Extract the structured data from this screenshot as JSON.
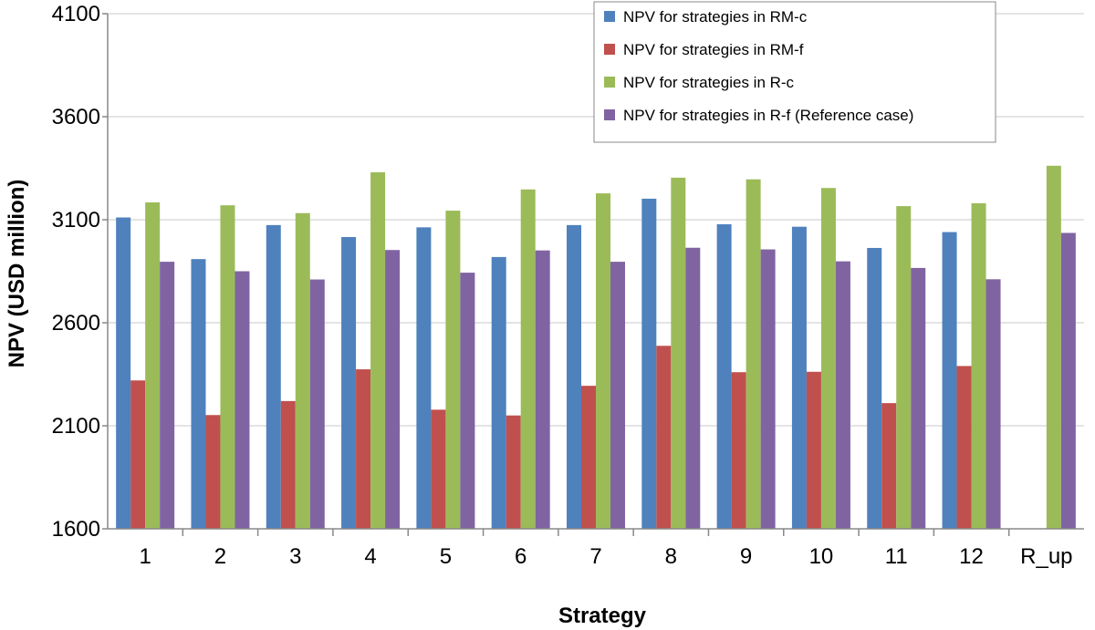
{
  "chart_data": {
    "type": "bar",
    "title": "",
    "xlabel": "Strategy",
    "ylabel": "NPV (USD million)",
    "ylim": [
      1600,
      4100
    ],
    "yticks": [
      1600,
      2100,
      2600,
      3100,
      3600,
      4100
    ],
    "grid": true,
    "legend_position": "top-right",
    "categories": [
      "1",
      "2",
      "3",
      "4",
      "5",
      "6",
      "7",
      "8",
      "9",
      "10",
      "11",
      "12",
      "R_up"
    ],
    "series": [
      {
        "name": "NPV for strategies in RM-c",
        "color": "#4f81bd",
        "values": [
          3111,
          2909,
          3074,
          3016,
          3063,
          2919,
          3074,
          3202,
          3078,
          3066,
          2963,
          3040,
          null
        ]
      },
      {
        "name": "NPV for strategies in RM-f",
        "color": "#c0504d",
        "values": [
          2320,
          2152,
          2220,
          2374,
          2178,
          2150,
          2294,
          2488,
          2360,
          2362,
          2210,
          2390,
          null
        ]
      },
      {
        "name": "NPV for strategies in R-c",
        "color": "#9bbb59",
        "values": [
          3184,
          3170,
          3132,
          3330,
          3144,
          3247,
          3228,
          3304,
          3296,
          3254,
          3166,
          3180,
          3362
        ]
      },
      {
        "name": "NPV for strategies in R-f (Reference case)",
        "color": "#8064a2",
        "values": [
          2896,
          2850,
          2810,
          2953,
          2843,
          2951,
          2896,
          2964,
          2956,
          2898,
          2866,
          2811,
          3036
        ]
      }
    ]
  }
}
